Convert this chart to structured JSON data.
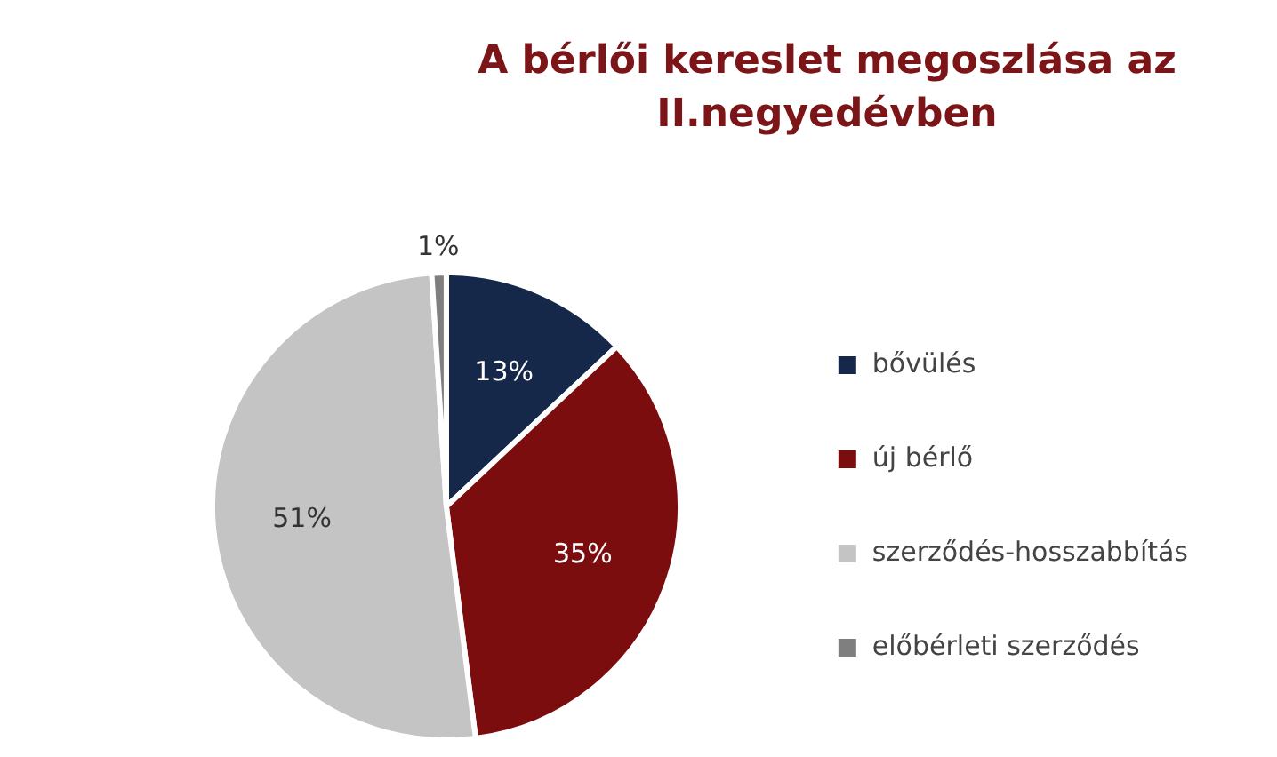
{
  "chart_data": {
    "type": "pie",
    "title": "A bérlői kereslet megoszlása az II.negyedévben",
    "categories": [
      "bővülés",
      "új bérlő",
      "szerződés-hosszabbítás",
      "előbérleti szerződés"
    ],
    "values": [
      13,
      35,
      51,
      1
    ],
    "colors": [
      "#16284a",
      "#7c0d0f",
      "#c4c4c4",
      "#7f7f7f"
    ],
    "value_labels": [
      "13%",
      "35%",
      "51%",
      "1%"
    ],
    "legend": "right"
  }
}
